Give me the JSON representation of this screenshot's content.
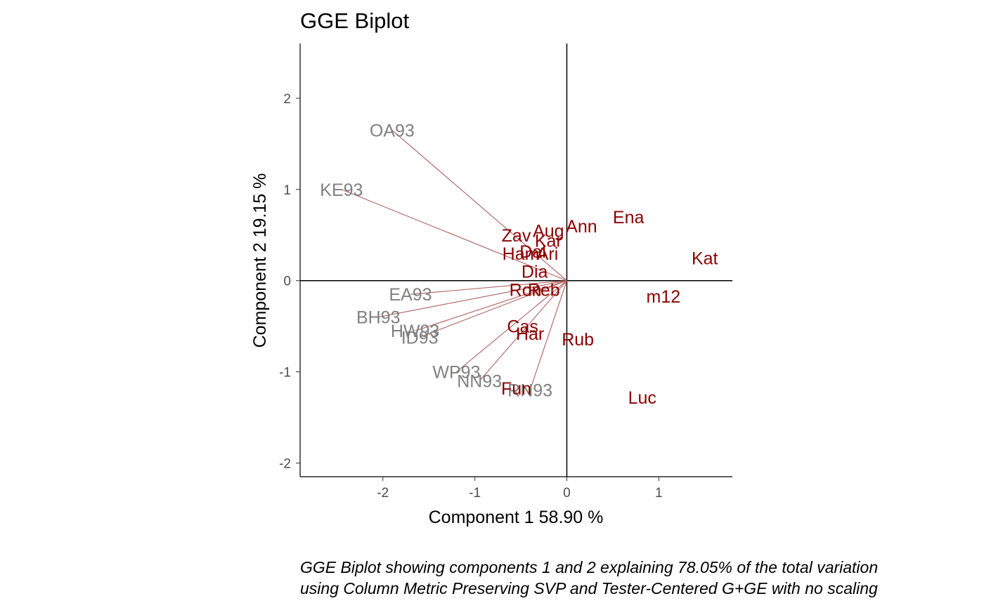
{
  "chart_data": {
    "type": "scatter",
    "title": "GGE Biplot",
    "xlabel": "Component 1 58.90 %",
    "ylabel": "Component 2 19.15 %",
    "xlim": [
      -2.9,
      1.8
    ],
    "ylim": [
      -2.15,
      2.6
    ],
    "xticks": [
      -2,
      -1,
      0,
      1
    ],
    "yticks": [
      -2,
      -1,
      0,
      1,
      2
    ],
    "reference_lines": {
      "x": 0,
      "y": 0
    },
    "grid": false,
    "vector_color": "#b06060",
    "series": [
      {
        "name": "environments",
        "color": "#808080",
        "vectors_from_origin": true,
        "points": [
          {
            "label": "OA93",
            "x": -1.9,
            "y": 1.65
          },
          {
            "label": "KE93",
            "x": -2.45,
            "y": 1.0
          },
          {
            "label": "EA93",
            "x": -1.7,
            "y": -0.15
          },
          {
            "label": "BH93",
            "x": -2.05,
            "y": -0.4
          },
          {
            "label": "HW93",
            "x": -1.65,
            "y": -0.55
          },
          {
            "label": "ID93",
            "x": -1.6,
            "y": -0.62
          },
          {
            "label": "WP93",
            "x": -1.2,
            "y": -1.0
          },
          {
            "label": "NN93",
            "x": -0.95,
            "y": -1.1
          },
          {
            "label": "RN93",
            "x": -0.4,
            "y": -1.2
          }
        ]
      },
      {
        "name": "genotypes",
        "color": "#8b0000",
        "vectors_from_origin": false,
        "points": [
          {
            "label": "Ena",
            "x": 0.67,
            "y": 0.7
          },
          {
            "label": "Ann",
            "x": 0.16,
            "y": 0.6
          },
          {
            "label": "Aug",
            "x": -0.2,
            "y": 0.55
          },
          {
            "label": "Zav",
            "x": -0.55,
            "y": 0.5
          },
          {
            "label": "Kar",
            "x": -0.2,
            "y": 0.44
          },
          {
            "label": "Dal",
            "x": -0.37,
            "y": 0.32
          },
          {
            "label": "Ari",
            "x": -0.21,
            "y": 0.3
          },
          {
            "label": "Ham",
            "x": -0.5,
            "y": 0.3
          },
          {
            "label": "Dia",
            "x": -0.35,
            "y": 0.1
          },
          {
            "label": "Kat",
            "x": 1.5,
            "y": 0.25
          },
          {
            "label": "Reb",
            "x": -0.25,
            "y": -0.1
          },
          {
            "label": "Ron",
            "x": -0.45,
            "y": -0.1
          },
          {
            "label": "m12",
            "x": 1.05,
            "y": -0.17
          },
          {
            "label": "Cas",
            "x": -0.48,
            "y": -0.5
          },
          {
            "label": "Har",
            "x": -0.4,
            "y": -0.58
          },
          {
            "label": "Rub",
            "x": 0.12,
            "y": -0.64
          },
          {
            "label": "Fun",
            "x": -0.55,
            "y": -1.18
          },
          {
            "label": "Luc",
            "x": 0.82,
            "y": -1.28
          }
        ]
      }
    ],
    "caption_lines": [
      "GGE Biplot showing components 1 and 2 explaining 78.05% of the total variation",
      "using Column Metric Preserving SVP and Tester-Centered G+GE with no scaling"
    ]
  }
}
